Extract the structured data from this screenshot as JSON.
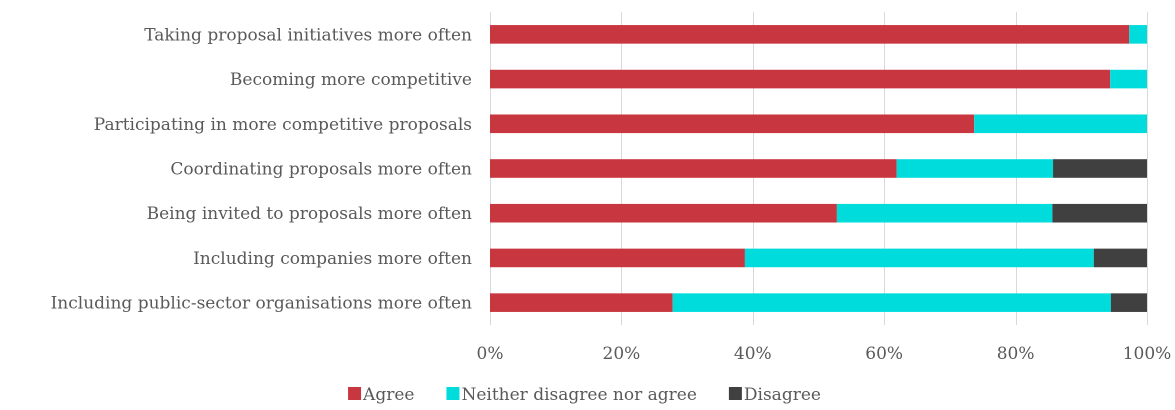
{
  "chart_data": {
    "type": "bar",
    "orientation": "horizontal",
    "stacked": true,
    "categories": [
      "Taking proposal initiatives more often",
      "Becoming more competitive",
      "Participating in more competitive proposals",
      "Coordinating proposals more often",
      "Being invited to proposals more often",
      "Including companies more often",
      "Including public-sector organisations more often"
    ],
    "series": [
      {
        "name": "Agree",
        "color": "#C8363F",
        "values": [
          97.3,
          94.4,
          73.7,
          61.9,
          52.8,
          38.8,
          27.8
        ]
      },
      {
        "name": "Neither disagree nor agree",
        "color": "#00DCDC",
        "values": [
          2.7,
          5.6,
          26.3,
          23.8,
          32.8,
          53.1,
          66.7
        ]
      },
      {
        "name": "Disagree",
        "color": "#404040",
        "values": [
          0,
          0,
          0,
          14.3,
          14.4,
          8.1,
          5.5
        ]
      }
    ],
    "xlim": [
      0,
      100
    ],
    "xticks": [
      "0%",
      "20%",
      "40%",
      "60%",
      "80%",
      "100%"
    ],
    "grid": true,
    "legend_position": "bottom"
  }
}
